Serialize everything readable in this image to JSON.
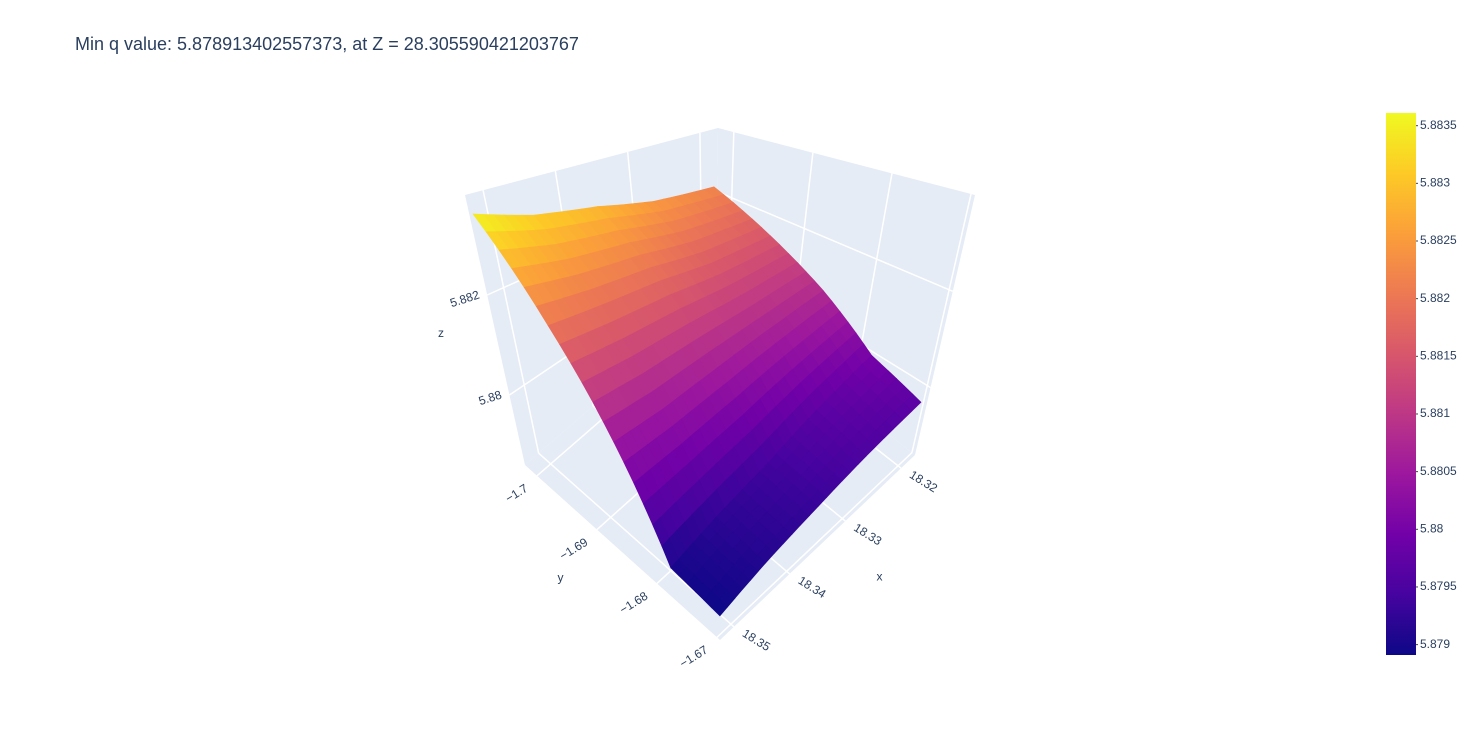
{
  "chart_data": {
    "type": "surface",
    "title": "Min q value: 5.878913402557373, at Z = 28.305590421203767",
    "xaxis_title": "x",
    "yaxis_title": "y",
    "zaxis_title": "z",
    "x": [
      18.318,
      18.327,
      18.335,
      18.344,
      18.352
    ],
    "y": [
      -1.702,
      -1.694,
      -1.686,
      -1.678,
      -1.67
    ],
    "z": [
      [
        5.8822,
        5.8815,
        5.8808,
        5.88,
        5.8797
      ],
      [
        5.8825,
        5.8816,
        5.8807,
        5.8797,
        5.8795
      ],
      [
        5.8829,
        5.8818,
        5.8806,
        5.8794,
        5.8793
      ],
      [
        5.8832,
        5.8819,
        5.8805,
        5.8792,
        5.8791
      ],
      [
        5.8836,
        5.882,
        5.8805,
        5.879,
        5.8789
      ]
    ],
    "xlim": [
      18.3175,
      18.3525
    ],
    "ylim": [
      -1.702,
      -1.6695
    ],
    "zlim": [
      5.8786,
      5.884
    ],
    "xticks": [
      18.32,
      18.33,
      18.34,
      18.35
    ],
    "yticks": [
      {
        "value": -1.7,
        "label": "−1.7"
      },
      {
        "value": -1.69,
        "label": "−1.69"
      },
      {
        "value": -1.68,
        "label": "−1.68"
      },
      {
        "value": -1.67,
        "label": "−1.67"
      }
    ],
    "zticks": [
      5.88,
      5.882
    ],
    "clim": [
      5.87891,
      5.88361
    ],
    "colorbar_ticks": [
      5.879,
      5.8795,
      5.88,
      5.8805,
      5.881,
      5.8815,
      5.882,
      5.8825,
      5.883,
      5.8835
    ],
    "colorscale": [
      "#0d0887",
      "#46039f",
      "#7201a8",
      "#9c179e",
      "#bd3786",
      "#d8576b",
      "#ed7953",
      "#fb9f3a",
      "#fdca26",
      "#f0f921"
    ],
    "grid": true
  }
}
